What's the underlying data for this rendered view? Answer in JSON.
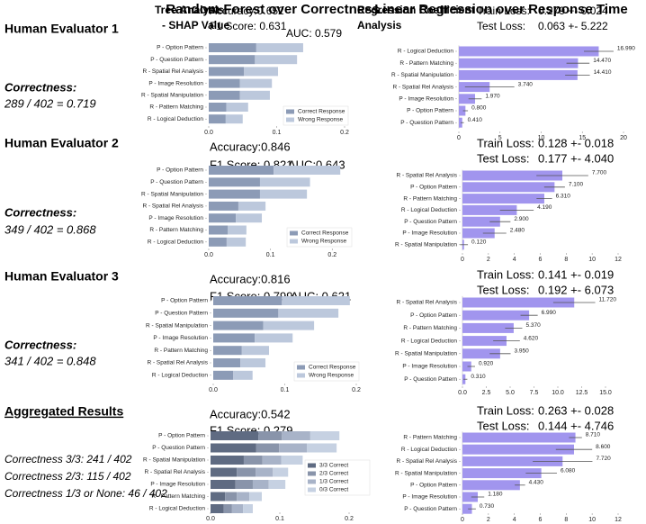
{
  "columns": [
    "Random Forest over Correctness",
    "Linear Regression over Response Time"
  ],
  "rows": [
    {
      "title": "Human Evaluator 1",
      "lines": [
        "Correctness:",
        "289 / 402 = 0.719"
      ]
    },
    {
      "title": "Human Evaluator 2",
      "lines": [
        "Correctness:",
        "349 / 402 = 0.868"
      ]
    },
    {
      "title": "Human Evaluator 3",
      "lines": [
        "Correctness:",
        "341 / 402 = 0.848"
      ]
    },
    {
      "title": "Aggregated Results",
      "lines": [
        "Correctness 3/3: 241 / 402",
        "Correctness 2/3: 115 / 402",
        "Correctness 1/3 or None: 46 / 402"
      ]
    }
  ],
  "chart_data": [
    {
      "type": "stacked_barh",
      "title_lines": [
        "Tree Analysis",
        "- SHAP Value"
      ],
      "annotations": [
        "Accuracy:0.652",
        "F1 Score: 0.631",
        "AUC: 0.579"
      ],
      "categories": [
        "P - Option Pattern",
        "P - Question Pattern",
        "R - Spatial Rel Analysis",
        "P - Image Resolution",
        "R - Spatial Manipulation",
        "R - Pattern Matching",
        "R - Logical Deduction"
      ],
      "series": [
        {
          "name": "Correct Response",
          "color": "#8c9bb6",
          "values": [
            0.07,
            0.068,
            0.052,
            0.046,
            0.046,
            0.026,
            0.025
          ]
        },
        {
          "name": "Wrong Response",
          "color": "#bcc8dc",
          "values": [
            0.069,
            0.062,
            0.05,
            0.047,
            0.044,
            0.032,
            0.025
          ]
        }
      ],
      "xlim": [
        0,
        0.2
      ],
      "xticks": [
        {
          "value": 0,
          "label": "0.0"
        },
        {
          "value": 0.1,
          "label": "0.1"
        },
        {
          "value": 0.2,
          "label": "0.2"
        }
      ]
    },
    {
      "type": "barh_error",
      "title_lines": [
        "Regression Coefficient",
        "Analysis"
      ],
      "annotations": [
        "Train Loss:",
        "0.279 +- 0.024",
        "Test Loss:",
        "0.063 +- 5.222"
      ],
      "categories": [
        "R - Logical Deduction",
        "R - Pattern Matching",
        "R - Spatial Manipulation",
        "R - Spatial Rel Analysis",
        "P - Image Resolution",
        "P - Option Pattern",
        "P - Question Pattern"
      ],
      "values": [
        16.99,
        14.47,
        14.41,
        3.74,
        1.97,
        0.8,
        0.41
      ],
      "value_labels": [
        "16.990",
        "14.470",
        "14.410",
        "3.740",
        "1.970",
        "0.800",
        "0.410"
      ],
      "errors": [
        1.8,
        1.4,
        1.5,
        3.0,
        0.8,
        0.3,
        0.2
      ],
      "color": "#a195ee",
      "xlim": [
        0,
        20
      ],
      "xticks": [
        0,
        5,
        10,
        15,
        20
      ]
    },
    {
      "type": "stacked_barh",
      "annotations": [
        "Accuracy:0.846",
        "F1 Score: 0.821",
        "AUC:0.643"
      ],
      "categories": [
        "P - Option Pattern",
        "P - Question Pattern",
        "R - Spatial Manipulation",
        "R - Spatial Rel Analysis",
        "P - Image Resolution",
        "R - Pattern Matching",
        "R - Logical Deduction"
      ],
      "series": [
        {
          "name": "Correct Response",
          "color": "#8c9bb6",
          "values": [
            0.105,
            0.083,
            0.083,
            0.048,
            0.044,
            0.031,
            0.029
          ]
        },
        {
          "name": "Wrong Response",
          "color": "#bcc8dc",
          "values": [
            0.108,
            0.081,
            0.076,
            0.044,
            0.042,
            0.03,
            0.031
          ]
        }
      ],
      "xlim": [
        0,
        0.22
      ],
      "xticks": [
        {
          "value": 0,
          "label": "0.0"
        },
        {
          "value": 0.1,
          "label": "0.1"
        },
        {
          "value": 0.2,
          "label": "0.2"
        }
      ]
    },
    {
      "type": "barh_error",
      "annotations": [
        "Train Loss:",
        "0.128 +- 0.018",
        "Test Loss:",
        "0.177 +- 4.040"
      ],
      "categories": [
        "R - Spatial Rel Analysis",
        "P - Option Pattern",
        "R - Pattern Matching",
        "R - Logical Deduction",
        "P - Question Pattern",
        "P - Image Resolution",
        "R - Spatial Manipulation"
      ],
      "values": [
        7.7,
        7.1,
        6.31,
        4.19,
        2.9,
        2.48,
        0.12
      ],
      "value_labels": [
        "7.700",
        "7.100",
        "6.310",
        "4.190",
        "2.900",
        "2.480",
        "0.120"
      ],
      "errors": [
        2.0,
        0.8,
        0.6,
        1.3,
        0.8,
        0.9,
        0.3
      ],
      "color": "#a195ee",
      "xlim": [
        0,
        12
      ],
      "xticks": [
        0,
        2,
        4,
        6,
        8,
        10,
        12
      ]
    },
    {
      "type": "stacked_barh",
      "annotations": [
        "Accuracy:0.816",
        "F1 Score: 0.799",
        "AUC: 0.621"
      ],
      "categories": [
        "P - Option Pattern",
        "P - Question Pattern",
        "R - Spatial Manipulation",
        "P - Image Resolution",
        "R - Pattern Matching",
        "R - Spatial Rel Analysis",
        "R - Logical Deduction"
      ],
      "series": [
        {
          "name": "Correct Response",
          "color": "#8c9bb6",
          "values": [
            0.096,
            0.091,
            0.07,
            0.058,
            0.04,
            0.038,
            0.028
          ]
        },
        {
          "name": "Wrong Response",
          "color": "#bcc8dc",
          "values": [
            0.095,
            0.084,
            0.071,
            0.053,
            0.038,
            0.035,
            0.027
          ]
        }
      ],
      "xlim": [
        0,
        0.2
      ],
      "xticks": [
        {
          "value": 0,
          "label": "0.0"
        },
        {
          "value": 0.1,
          "label": "0.1"
        },
        {
          "value": 0.2,
          "label": "0.2"
        }
      ]
    },
    {
      "type": "barh_error",
      "annotations": [
        "Train Loss:",
        "0.141 +- 0.019",
        "Test Loss:",
        "0.192 +- 6.073"
      ],
      "categories": [
        "R - Spatial Rel Analysis",
        "P - Option Pattern",
        "R - Pattern Matching",
        "R - Logical Deduction",
        "R - Spatial Manipulation",
        "P - Image Resolution",
        "P - Question Pattern"
      ],
      "values": [
        11.72,
        6.99,
        5.37,
        4.62,
        3.95,
        0.92,
        0.31
      ],
      "value_labels": [
        "11.720",
        "6.990",
        "5.370",
        "4.620",
        "3.950",
        "0.920",
        "0.310"
      ],
      "errors": [
        2.2,
        0.9,
        0.9,
        1.4,
        1.1,
        0.4,
        0.2
      ],
      "color": "#a195ee",
      "xlim": [
        0,
        15
      ],
      "xticks": [
        {
          "value": 0,
          "label": "0.0"
        },
        2.5,
        {
          "value": 5,
          "label": "5.0"
        },
        7.5,
        {
          "value": 10,
          "label": "10.0"
        },
        12.5,
        {
          "value": 15,
          "label": "15.0"
        }
      ]
    },
    {
      "type": "stacked_barh",
      "annotations": [
        "Accuracy:0.542",
        "F1 Score: 0.279"
      ],
      "categories": [
        "P - Option Pattern",
        "P - Question Pattern",
        "R - Spatial Manipulation",
        "R - Spatial Rel Analysis",
        "P - Image Resolution",
        "R - Pattern Matching",
        "R - Logical Deduction"
      ],
      "series": [
        {
          "name": "3/3 Correct",
          "color": "#5f6b82",
          "values": [
            0.069,
            0.066,
            0.048,
            0.038,
            0.036,
            0.021,
            0.019
          ]
        },
        {
          "name": "2/3 Correct",
          "color": "#8994aa",
          "values": [
            0.034,
            0.033,
            0.027,
            0.027,
            0.025,
            0.017,
            0.012
          ]
        },
        {
          "name": "1/3 Correct",
          "color": "#a8b3c8",
          "values": [
            0.041,
            0.04,
            0.027,
            0.025,
            0.023,
            0.018,
            0.016
          ]
        },
        {
          "name": "0/3 Correct",
          "color": "#c6d1e2",
          "values": [
            0.042,
            0.043,
            0.031,
            0.022,
            0.024,
            0.018,
            0.014
          ]
        }
      ],
      "xlim": [
        0,
        0.2
      ],
      "xticks": [
        {
          "value": 0,
          "label": "0.0"
        },
        {
          "value": 0.1,
          "label": "0.1"
        },
        {
          "value": 0.2,
          "label": "0.2"
        }
      ]
    },
    {
      "type": "barh_error",
      "annotations": [
        "Train Loss:",
        "0.263 +- 0.028",
        "Test Loss:",
        "0.144 +- 4.746"
      ],
      "categories": [
        "R - Pattern Matching",
        "R - Logical Deduction",
        "R - Spatial Rel Analysis",
        "R - Spatial Manipulation",
        "P - Option Pattern",
        "P - Image Resolution",
        "P - Question Pattern"
      ],
      "values": [
        8.71,
        8.6,
        7.72,
        6.08,
        4.43,
        1.18,
        0.73
      ],
      "value_labels": [
        "8.710",
        "8.600",
        "7.720",
        "6.080",
        "4.430",
        "1.180",
        "0.730"
      ],
      "errors": [
        0.5,
        1.4,
        2.3,
        1.2,
        0.4,
        0.5,
        0.3
      ],
      "color": "#a195ee",
      "xlim": [
        0,
        12
      ],
      "xticks": [
        0,
        2,
        4,
        6,
        8,
        10,
        12
      ]
    }
  ]
}
